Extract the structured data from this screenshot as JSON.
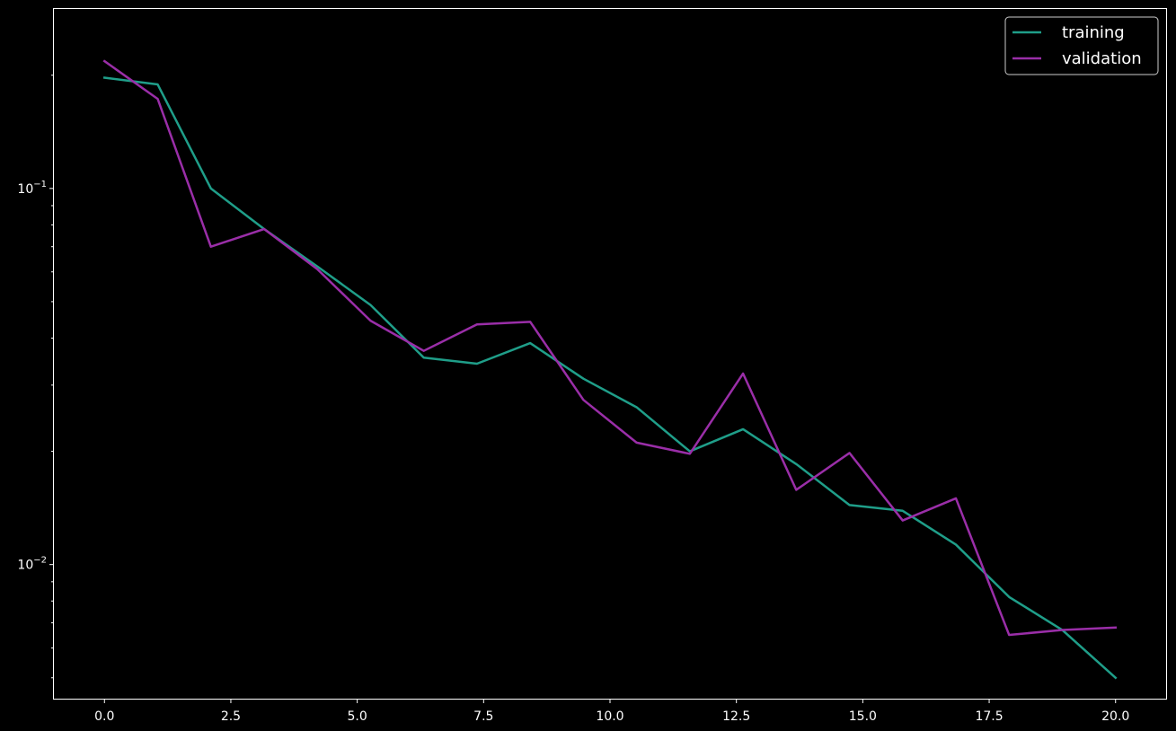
{
  "chart_data": {
    "type": "line",
    "title": "",
    "xlabel": "",
    "ylabel": "",
    "xlim": [
      -1.0,
      21.0
    ],
    "ylim": [
      0.0044,
      0.3
    ],
    "yscale": "log",
    "grid": false,
    "legend_position": "top-right",
    "background": "#000000",
    "foreground": "#ffffff",
    "x_ticks": [
      0.0,
      2.5,
      5.0,
      7.5,
      10.0,
      12.5,
      15.0,
      17.5,
      20.0
    ],
    "x_tick_labels": [
      "0.0",
      "2.5",
      "5.0",
      "7.5",
      "10.0",
      "12.5",
      "15.0",
      "17.5",
      "20.0"
    ],
    "y_major_ticks": [
      0.01,
      0.1
    ],
    "y_tick_labels": [
      {
        "base": "10",
        "exp": "−2"
      },
      {
        "base": "10",
        "exp": "−1"
      }
    ],
    "y_minor_ticks": [
      0.005,
      0.006,
      0.007,
      0.008,
      0.009,
      0.02,
      0.03,
      0.04,
      0.05,
      0.06,
      0.07,
      0.08,
      0.09,
      0.2
    ],
    "x": [
      0.0,
      1.053,
      2.105,
      3.158,
      4.211,
      5.263,
      6.316,
      7.368,
      8.421,
      9.474,
      10.526,
      11.579,
      12.632,
      13.684,
      14.737,
      15.789,
      16.842,
      17.895,
      18.947,
      20.0
    ],
    "series": [
      {
        "name": "training",
        "color": "#1f9e89",
        "values": [
          0.197,
          0.189,
          0.1,
          0.078,
          0.062,
          0.049,
          0.0355,
          0.0342,
          0.0388,
          0.0312,
          0.0262,
          0.02,
          0.0229,
          0.0185,
          0.0144,
          0.0139,
          0.0113,
          0.0082,
          0.0067,
          0.005
        ]
      },
      {
        "name": "validation",
        "color": "#9a2ea8",
        "values": [
          0.218,
          0.173,
          0.07,
          0.078,
          0.061,
          0.0445,
          0.037,
          0.0435,
          0.0442,
          0.0274,
          0.0211,
          0.0197,
          0.0322,
          0.0158,
          0.0198,
          0.0131,
          0.015,
          0.0065,
          0.0067,
          0.0068
        ]
      }
    ]
  }
}
